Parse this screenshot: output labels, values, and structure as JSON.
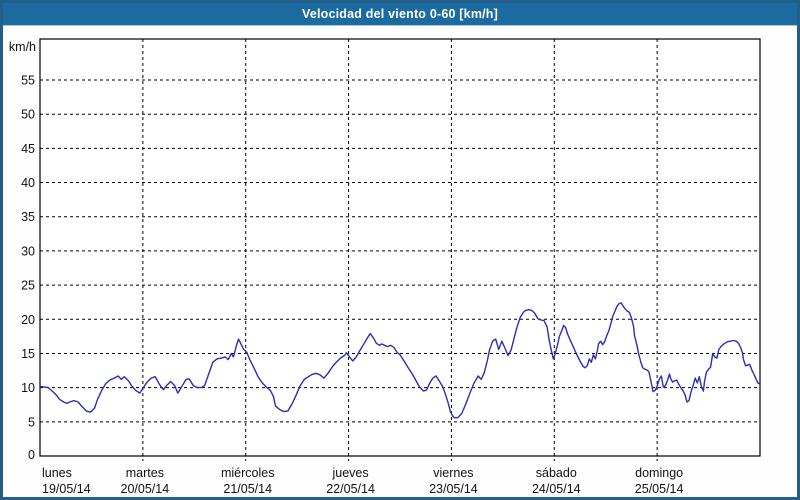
{
  "window": {
    "title": "Velocidad del viento 0-60 [km/h]"
  },
  "colors": {
    "frame_border": "#235e8a",
    "title_bar_bg": "#1b6aa0",
    "title_text": "#ffffff",
    "background": "#fdfefd",
    "plot_bg": "#ffffff",
    "axis_line": "#000000",
    "grid_line": "#000000",
    "axis_text": "#111111",
    "series_line": "#2a2fb4"
  },
  "axis": {
    "unit_label": "km/h",
    "origin_label": "0",
    "y_ticks": [
      55,
      50,
      45,
      40,
      35,
      30,
      25,
      20,
      15,
      10,
      5
    ]
  },
  "days": [
    {
      "name": "lunes",
      "date": "19/05/14"
    },
    {
      "name": "martes",
      "date": "20/05/14"
    },
    {
      "name": "miércoles",
      "date": "21/05/14"
    },
    {
      "name": "jueves",
      "date": "22/05/14"
    },
    {
      "name": "viernes",
      "date": "23/05/14"
    },
    {
      "name": "sábado",
      "date": "24/05/14"
    },
    {
      "name": "domingo",
      "date": "25/05/14"
    }
  ],
  "chart_data": {
    "type": "line",
    "title": "Velocidad del viento 0-60 [km/h]",
    "xlabel": "",
    "ylabel": "km/h",
    "ylim": [
      0,
      61
    ],
    "grid": true,
    "legend_position": "none",
    "x_unit": "days since lunes 19/05/14",
    "categories": [
      "lunes 19/05/14",
      "martes 20/05/14",
      "miércoles 21/05/14",
      "jueves 22/05/14",
      "viernes 23/05/14",
      "sábado 24/05/14",
      "domingo 25/05/14"
    ],
    "series": [
      {
        "name": "Velocidad del viento",
        "color": "#2a2fb4",
        "points": [
          [
            0.0,
            10.2
          ],
          [
            0.04,
            10.1
          ],
          [
            0.08,
            10.0
          ],
          [
            0.12,
            9.5
          ],
          [
            0.16,
            8.9
          ],
          [
            0.19,
            8.3
          ],
          [
            0.23,
            7.9
          ],
          [
            0.26,
            7.7
          ],
          [
            0.29,
            7.9
          ],
          [
            0.33,
            8.1
          ],
          [
            0.37,
            7.9
          ],
          [
            0.41,
            7.2
          ],
          [
            0.45,
            6.6
          ],
          [
            0.49,
            6.4
          ],
          [
            0.53,
            7.0
          ],
          [
            0.56,
            8.3
          ],
          [
            0.6,
            9.6
          ],
          [
            0.64,
            10.6
          ],
          [
            0.68,
            11.1
          ],
          [
            0.72,
            11.4
          ],
          [
            0.76,
            11.7
          ],
          [
            0.79,
            11.2
          ],
          [
            0.82,
            11.6
          ],
          [
            0.86,
            11.0
          ],
          [
            0.89,
            10.3
          ],
          [
            0.93,
            9.6
          ],
          [
            0.97,
            9.2
          ],
          [
            1.0,
            9.9
          ],
          [
            1.04,
            10.8
          ],
          [
            1.08,
            11.4
          ],
          [
            1.12,
            11.6
          ],
          [
            1.16,
            10.5
          ],
          [
            1.2,
            9.7
          ],
          [
            1.23,
            10.3
          ],
          [
            1.27,
            10.9
          ],
          [
            1.31,
            10.3
          ],
          [
            1.34,
            9.2
          ],
          [
            1.38,
            10.2
          ],
          [
            1.42,
            11.2
          ],
          [
            1.45,
            11.3
          ],
          [
            1.49,
            10.3
          ],
          [
            1.53,
            10.0
          ],
          [
            1.57,
            10.0
          ],
          [
            1.6,
            10.3
          ],
          [
            1.64,
            12.0
          ],
          [
            1.68,
            13.7
          ],
          [
            1.72,
            14.2
          ],
          [
            1.76,
            14.3
          ],
          [
            1.8,
            14.5
          ],
          [
            1.83,
            14.1
          ],
          [
            1.86,
            15.0
          ],
          [
            1.88,
            14.5
          ],
          [
            1.91,
            16.2
          ],
          [
            1.93,
            17.1
          ],
          [
            1.95,
            16.5
          ],
          [
            1.98,
            15.6
          ],
          [
            2.01,
            15.2
          ],
          [
            2.04,
            14.1
          ],
          [
            2.08,
            12.9
          ],
          [
            2.12,
            11.6
          ],
          [
            2.16,
            10.7
          ],
          [
            2.2,
            10.1
          ],
          [
            2.24,
            9.6
          ],
          [
            2.27,
            8.7
          ],
          [
            2.29,
            7.3
          ],
          [
            2.33,
            6.8
          ],
          [
            2.37,
            6.5
          ],
          [
            2.41,
            6.6
          ],
          [
            2.45,
            7.6
          ],
          [
            2.49,
            8.9
          ],
          [
            2.53,
            10.3
          ],
          [
            2.57,
            11.2
          ],
          [
            2.61,
            11.6
          ],
          [
            2.64,
            11.9
          ],
          [
            2.68,
            12.1
          ],
          [
            2.72,
            11.9
          ],
          [
            2.76,
            11.4
          ],
          [
            2.8,
            12.1
          ],
          [
            2.84,
            13.0
          ],
          [
            2.88,
            13.7
          ],
          [
            2.92,
            14.3
          ],
          [
            2.96,
            14.7
          ],
          [
            2.98,
            15.1
          ],
          [
            3.01,
            14.5
          ],
          [
            3.04,
            13.9
          ],
          [
            3.07,
            14.4
          ],
          [
            3.1,
            15.2
          ],
          [
            3.14,
            16.2
          ],
          [
            3.18,
            17.2
          ],
          [
            3.21,
            17.9
          ],
          [
            3.24,
            17.3
          ],
          [
            3.27,
            16.5
          ],
          [
            3.3,
            16.2
          ],
          [
            3.32,
            16.4
          ],
          [
            3.35,
            16.2
          ],
          [
            3.38,
            16.0
          ],
          [
            3.41,
            16.2
          ],
          [
            3.44,
            15.9
          ],
          [
            3.47,
            15.2
          ],
          [
            3.5,
            14.8
          ],
          [
            3.54,
            13.9
          ],
          [
            3.58,
            12.9
          ],
          [
            3.62,
            12.0
          ],
          [
            3.66,
            10.9
          ],
          [
            3.69,
            10.1
          ],
          [
            3.73,
            9.5
          ],
          [
            3.76,
            9.7
          ],
          [
            3.79,
            10.7
          ],
          [
            3.82,
            11.4
          ],
          [
            3.85,
            11.7
          ],
          [
            3.88,
            11.0
          ],
          [
            3.91,
            10.3
          ],
          [
            3.94,
            9.1
          ],
          [
            3.97,
            7.7
          ],
          [
            3.99,
            6.5
          ],
          [
            4.01,
            5.9
          ],
          [
            4.03,
            5.6
          ],
          [
            4.06,
            5.6
          ],
          [
            4.1,
            6.2
          ],
          [
            4.14,
            7.6
          ],
          [
            4.18,
            9.2
          ],
          [
            4.22,
            10.7
          ],
          [
            4.26,
            11.7
          ],
          [
            4.29,
            11.2
          ],
          [
            4.32,
            12.2
          ],
          [
            4.35,
            14.0
          ],
          [
            4.37,
            15.5
          ],
          [
            4.4,
            16.8
          ],
          [
            4.43,
            17.1
          ],
          [
            4.46,
            15.6
          ],
          [
            4.49,
            16.8
          ],
          [
            4.52,
            15.8
          ],
          [
            4.55,
            14.7
          ],
          [
            4.58,
            15.5
          ],
          [
            4.61,
            17.3
          ],
          [
            4.64,
            19.0
          ],
          [
            4.67,
            20.3
          ],
          [
            4.7,
            21.0
          ],
          [
            4.72,
            21.3
          ],
          [
            4.75,
            21.4
          ],
          [
            4.78,
            21.3
          ],
          [
            4.81,
            20.9
          ],
          [
            4.84,
            20.1
          ],
          [
            4.87,
            19.9
          ],
          [
            4.9,
            19.8
          ],
          [
            4.93,
            18.9
          ],
          [
            4.95,
            17.0
          ],
          [
            4.97,
            15.5
          ],
          [
            4.99,
            14.2
          ],
          [
            5.01,
            15.0
          ],
          [
            5.03,
            16.2
          ],
          [
            5.05,
            17.5
          ],
          [
            5.08,
            18.6
          ],
          [
            5.09,
            19.1
          ],
          [
            5.11,
            18.8
          ],
          [
            5.13,
            17.8
          ],
          [
            5.16,
            16.8
          ],
          [
            5.19,
            15.8
          ],
          [
            5.22,
            14.8
          ],
          [
            5.25,
            13.9
          ],
          [
            5.28,
            13.1
          ],
          [
            5.3,
            12.9
          ],
          [
            5.32,
            13.2
          ],
          [
            5.34,
            14.2
          ],
          [
            5.36,
            13.7
          ],
          [
            5.38,
            14.8
          ],
          [
            5.4,
            14.2
          ],
          [
            5.42,
            15.5
          ],
          [
            5.43,
            16.4
          ],
          [
            5.45,
            16.8
          ],
          [
            5.47,
            16.3
          ],
          [
            5.49,
            16.7
          ],
          [
            5.51,
            17.6
          ],
          [
            5.53,
            18.3
          ],
          [
            5.55,
            19.4
          ],
          [
            5.57,
            20.5
          ],
          [
            5.59,
            21.2
          ],
          [
            5.61,
            21.9
          ],
          [
            5.63,
            22.3
          ],
          [
            5.65,
            22.4
          ],
          [
            5.67,
            21.9
          ],
          [
            5.69,
            21.5
          ],
          [
            5.71,
            21.2
          ],
          [
            5.73,
            21.0
          ],
          [
            5.75,
            20.2
          ],
          [
            5.77,
            19.0
          ],
          [
            5.78,
            17.6
          ],
          [
            5.8,
            16.4
          ],
          [
            5.82,
            15.0
          ],
          [
            5.84,
            13.8
          ],
          [
            5.86,
            12.9
          ],
          [
            5.88,
            12.7
          ],
          [
            5.9,
            12.6
          ],
          [
            5.92,
            12.3
          ],
          [
            5.94,
            10.9
          ],
          [
            5.96,
            9.4
          ],
          [
            5.98,
            9.6
          ],
          [
            6.0,
            10.2
          ],
          [
            6.02,
            11.2
          ],
          [
            6.04,
            11.7
          ],
          [
            6.06,
            10.1
          ],
          [
            6.08,
            10.3
          ],
          [
            6.1,
            11.0
          ],
          [
            6.12,
            12.0
          ],
          [
            6.13,
            11.4
          ],
          [
            6.15,
            10.8
          ],
          [
            6.17,
            11.0
          ],
          [
            6.19,
            11.1
          ],
          [
            6.21,
            10.5
          ],
          [
            6.23,
            10.0
          ],
          [
            6.25,
            9.6
          ],
          [
            6.27,
            9.0
          ],
          [
            6.29,
            7.9
          ],
          [
            6.31,
            8.1
          ],
          [
            6.33,
            9.4
          ],
          [
            6.35,
            10.3
          ],
          [
            6.37,
            11.4
          ],
          [
            6.39,
            10.7
          ],
          [
            6.41,
            11.6
          ],
          [
            6.43,
            10.1
          ],
          [
            6.45,
            9.5
          ],
          [
            6.46,
            10.9
          ],
          [
            6.48,
            12.3
          ],
          [
            6.5,
            12.7
          ],
          [
            6.52,
            13.0
          ],
          [
            6.54,
            15.0
          ],
          [
            6.56,
            14.5
          ],
          [
            6.58,
            14.3
          ],
          [
            6.6,
            15.6
          ],
          [
            6.62,
            16.0
          ],
          [
            6.64,
            16.3
          ],
          [
            6.66,
            16.5
          ],
          [
            6.68,
            16.7
          ],
          [
            6.71,
            16.8
          ],
          [
            6.74,
            16.9
          ],
          [
            6.77,
            16.8
          ],
          [
            6.79,
            16.5
          ],
          [
            6.81,
            15.9
          ],
          [
            6.83,
            15.1
          ],
          [
            6.84,
            14.1
          ],
          [
            6.86,
            13.2
          ],
          [
            6.88,
            13.3
          ],
          [
            6.9,
            13.4
          ],
          [
            6.92,
            12.6
          ],
          [
            6.94,
            12.0
          ],
          [
            6.96,
            11.3
          ],
          [
            6.98,
            10.7
          ],
          [
            7.0,
            10.5
          ]
        ]
      }
    ]
  }
}
